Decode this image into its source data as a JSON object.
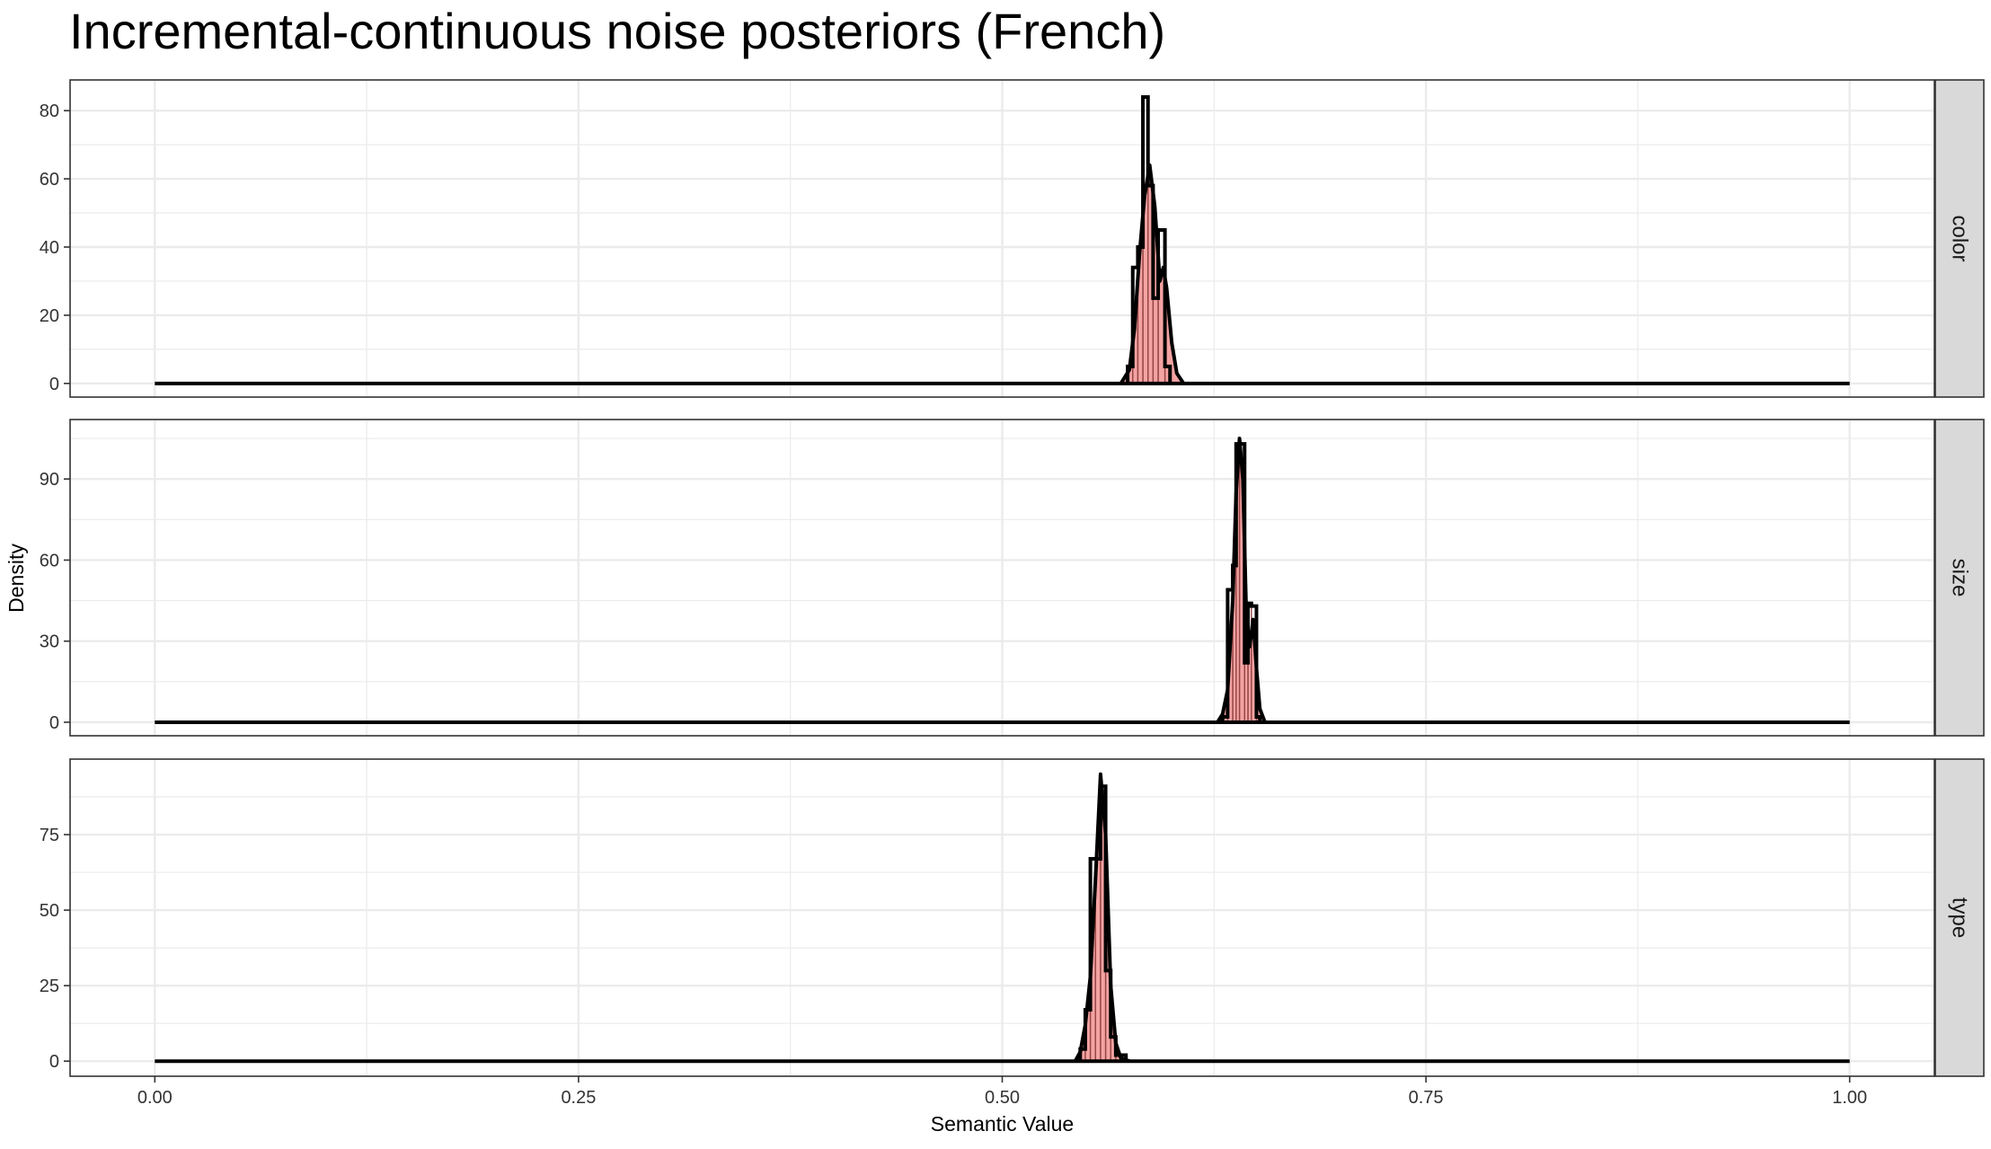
{
  "chart_data": {
    "type": "histogram-density",
    "title": "Incremental-continuous noise posteriors (French)",
    "xlabel": "Semantic Value",
    "ylabel": "Density",
    "xlim": [
      -0.05,
      1.05
    ],
    "x_ticks": [
      0.0,
      0.25,
      0.5,
      0.75,
      1.0
    ],
    "x_tick_labels": [
      "0.00",
      "0.25",
      "0.50",
      "0.75",
      "1.00"
    ],
    "grid": true,
    "colors": {
      "fill": "#f4a3a3",
      "outline": "#000000",
      "strip_bg": "#d9d9d9",
      "grid": "#ebebeb",
      "bar_edge": "#8b3a3a"
    },
    "panels": [
      {
        "label": "color",
        "ylim": [
          -4,
          89
        ],
        "y_ticks": [
          0,
          20,
          40,
          60,
          80
        ],
        "y_tick_labels": [
          "0",
          "20",
          "40",
          "60",
          "80"
        ],
        "line_range": [
          0.0,
          1.0
        ],
        "histogram": [
          {
            "x0": 0.574,
            "x1": 0.577,
            "y": 5
          },
          {
            "x0": 0.577,
            "x1": 0.58,
            "y": 34
          },
          {
            "x0": 0.58,
            "x1": 0.583,
            "y": 40
          },
          {
            "x0": 0.583,
            "x1": 0.586,
            "y": 84
          },
          {
            "x0": 0.586,
            "x1": 0.589,
            "y": 58
          },
          {
            "x0": 0.589,
            "x1": 0.592,
            "y": 25
          },
          {
            "x0": 0.592,
            "x1": 0.596,
            "y": 45
          },
          {
            "x0": 0.596,
            "x1": 0.599,
            "y": 5
          }
        ],
        "density": [
          {
            "x": 0.57,
            "y": 0
          },
          {
            "x": 0.575,
            "y": 4
          },
          {
            "x": 0.578,
            "y": 16
          },
          {
            "x": 0.581,
            "y": 38
          },
          {
            "x": 0.584,
            "y": 55
          },
          {
            "x": 0.587,
            "y": 64
          },
          {
            "x": 0.59,
            "y": 52
          },
          {
            "x": 0.593,
            "y": 30
          },
          {
            "x": 0.595,
            "y": 34
          },
          {
            "x": 0.597,
            "y": 28
          },
          {
            "x": 0.6,
            "y": 12
          },
          {
            "x": 0.603,
            "y": 3
          },
          {
            "x": 0.607,
            "y": 0
          }
        ]
      },
      {
        "label": "size",
        "ylim": [
          -5,
          112
        ],
        "y_ticks": [
          0,
          30,
          60,
          90
        ],
        "y_tick_labels": [
          "0",
          "30",
          "60",
          "90"
        ],
        "line_range": [
          0.0,
          1.0
        ],
        "histogram": [
          {
            "x0": 0.63,
            "x1": 0.633,
            "y": 2
          },
          {
            "x0": 0.633,
            "x1": 0.636,
            "y": 49
          },
          {
            "x0": 0.636,
            "x1": 0.638,
            "y": 58
          },
          {
            "x0": 0.638,
            "x1": 0.64,
            "y": 103
          },
          {
            "x0": 0.64,
            "x1": 0.643,
            "y": 103
          },
          {
            "x0": 0.643,
            "x1": 0.645,
            "y": 22
          },
          {
            "x0": 0.645,
            "x1": 0.647,
            "y": 44
          },
          {
            "x0": 0.647,
            "x1": 0.65,
            "y": 43
          },
          {
            "x0": 0.65,
            "x1": 0.652,
            "y": 2
          }
        ],
        "density": [
          {
            "x": 0.627,
            "y": 0
          },
          {
            "x": 0.63,
            "y": 3
          },
          {
            "x": 0.633,
            "y": 12
          },
          {
            "x": 0.636,
            "y": 45
          },
          {
            "x": 0.638,
            "y": 85
          },
          {
            "x": 0.64,
            "y": 105
          },
          {
            "x": 0.642,
            "y": 90
          },
          {
            "x": 0.644,
            "y": 40
          },
          {
            "x": 0.646,
            "y": 28
          },
          {
            "x": 0.648,
            "y": 38
          },
          {
            "x": 0.65,
            "y": 20
          },
          {
            "x": 0.652,
            "y": 5
          },
          {
            "x": 0.655,
            "y": 0
          }
        ]
      },
      {
        "label": "type",
        "ylim": [
          -5,
          100
        ],
        "y_ticks": [
          0,
          25,
          50,
          75
        ],
        "y_tick_labels": [
          "0",
          "25",
          "50",
          "75"
        ],
        "line_range": [
          0.0,
          1.0
        ],
        "histogram": [
          {
            "x0": 0.546,
            "x1": 0.549,
            "y": 4
          },
          {
            "x0": 0.549,
            "x1": 0.552,
            "y": 17
          },
          {
            "x0": 0.552,
            "x1": 0.555,
            "y": 67
          },
          {
            "x0": 0.555,
            "x1": 0.558,
            "y": 67
          },
          {
            "x0": 0.558,
            "x1": 0.561,
            "y": 91
          },
          {
            "x0": 0.561,
            "x1": 0.564,
            "y": 30
          },
          {
            "x0": 0.564,
            "x1": 0.567,
            "y": 8
          },
          {
            "x0": 0.567,
            "x1": 0.57,
            "y": 2
          },
          {
            "x0": 0.57,
            "x1": 0.573,
            "y": 2
          }
        ],
        "density": [
          {
            "x": 0.543,
            "y": 0
          },
          {
            "x": 0.546,
            "y": 3
          },
          {
            "x": 0.549,
            "y": 12
          },
          {
            "x": 0.552,
            "y": 28
          },
          {
            "x": 0.555,
            "y": 60
          },
          {
            "x": 0.558,
            "y": 95
          },
          {
            "x": 0.561,
            "y": 75
          },
          {
            "x": 0.564,
            "y": 25
          },
          {
            "x": 0.567,
            "y": 6
          },
          {
            "x": 0.57,
            "y": 1
          },
          {
            "x": 0.575,
            "y": 0
          }
        ]
      }
    ]
  }
}
